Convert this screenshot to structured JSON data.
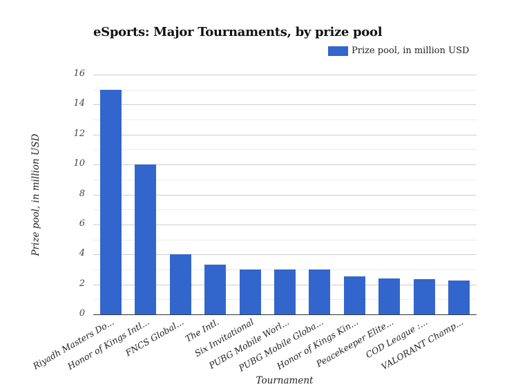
{
  "chart_data": {
    "type": "bar",
    "title": "eSports: Major Tournaments, by prize pool",
    "xlabel": "Tournament",
    "ylabel": "Prize pool, in million USD",
    "ylim": [
      0,
      16
    ],
    "yticks": [
      0,
      2,
      4,
      6,
      8,
      10,
      12,
      14,
      16
    ],
    "grid": true,
    "legend_position": "top-right",
    "categories": [
      "Riyadh Masters Do...",
      "Honor of Kings Intl...",
      "FNCS Global...",
      "The Intl.",
      "Six Invitational",
      "PUBG Mobile Worl...",
      "PUBG Mobile Globa...",
      "Honor of Kings Kin...",
      "Peacekeeper Elite...",
      "COD League :...",
      "VALORANT Champ..."
    ],
    "series": [
      {
        "name": "Prize pool, in million USD",
        "color": "#3366cc",
        "values": [
          15,
          10,
          4,
          3.3,
          3,
          3,
          3,
          2.55,
          2.4,
          2.35,
          2.25
        ]
      }
    ]
  },
  "legend": {
    "label": "Prize pool, in million USD",
    "color": "#3366cc"
  }
}
